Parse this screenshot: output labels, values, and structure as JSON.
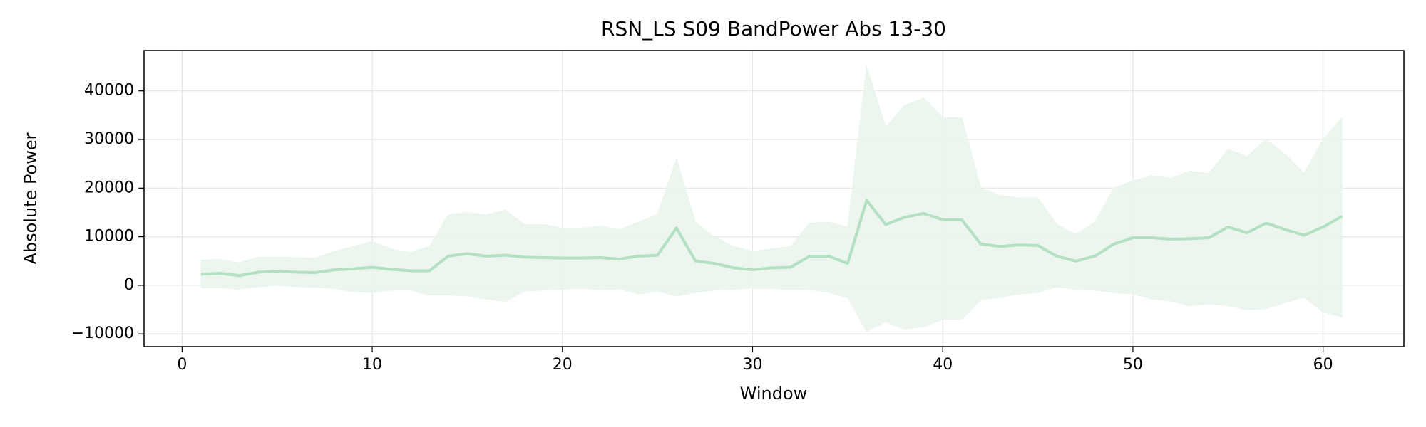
{
  "chart_data": {
    "type": "line",
    "title": "RSN_LS S09 BandPower Abs 13-30",
    "xlabel": "Window",
    "ylabel": "Absolute Power",
    "x": [
      1,
      2,
      3,
      4,
      5,
      6,
      7,
      8,
      9,
      10,
      11,
      12,
      13,
      14,
      15,
      16,
      17,
      18,
      19,
      20,
      21,
      22,
      23,
      24,
      25,
      26,
      27,
      28,
      29,
      30,
      31,
      32,
      33,
      34,
      35,
      36,
      37,
      38,
      39,
      40,
      41,
      42,
      43,
      44,
      45,
      46,
      47,
      48,
      49,
      50,
      51,
      52,
      53,
      54,
      55,
      56,
      57,
      58,
      59,
      60,
      61
    ],
    "series": [
      {
        "color": "#b3dfc3",
        "band_color": "#e9f5ec",
        "values": [
          2300,
          2500,
          2000,
          2700,
          2900,
          2700,
          2600,
          3200,
          3400,
          3700,
          3300,
          3000,
          3000,
          6000,
          6500,
          6000,
          6200,
          5800,
          5700,
          5600,
          5600,
          5700,
          5400,
          6000,
          6200,
          11800,
          5000,
          4500,
          3600,
          3200,
          3600,
          3700,
          6000,
          6000,
          4500,
          17500,
          12500,
          14000,
          14800,
          13500,
          13500,
          8500,
          8000,
          8300,
          8200,
          6000,
          5000,
          6000,
          8500,
          9800,
          9800,
          9500,
          9600,
          9800,
          12000,
          10800,
          12800,
          11500,
          10300,
          12000,
          14200
        ],
        "upper": [
          5200,
          5300,
          4600,
          5800,
          5800,
          5700,
          5600,
          7000,
          8000,
          9000,
          7500,
          6800,
          8000,
          14500,
          15000,
          14500,
          15500,
          12500,
          12500,
          11800,
          11800,
          12200,
          11500,
          13000,
          14500,
          26000,
          13000,
          10000,
          8000,
          7000,
          7500,
          8000,
          12800,
          13000,
          12000,
          45000,
          32500,
          37000,
          38500,
          34500,
          34500,
          20000,
          18500,
          18000,
          18000,
          12500,
          10500,
          13000,
          20000,
          21500,
          22500,
          22000,
          23500,
          23000,
          28000,
          26500,
          30000,
          27000,
          23000,
          30000,
          34500
        ],
        "lower": [
          -500,
          -500,
          -800,
          -300,
          0,
          -300,
          -400,
          -700,
          -1300,
          -1500,
          -1000,
          -1000,
          -2000,
          -2000,
          -2200,
          -2800,
          -3300,
          -1200,
          -1000,
          -800,
          -600,
          -900,
          -700,
          -1800,
          -1200,
          -2200,
          -1500,
          -1000,
          -800,
          -600,
          -700,
          -800,
          -900,
          -1500,
          -2500,
          -9500,
          -7500,
          -9000,
          -8500,
          -7000,
          -7000,
          -3000,
          -2500,
          -1800,
          -1500,
          -300,
          -900,
          -1000,
          -1500,
          -1800,
          -2800,
          -3200,
          -4200,
          -3800,
          -4200,
          -5000,
          -4800,
          -3500,
          -2500,
          -5500,
          -6500
        ]
      }
    ],
    "xlim": [
      -2,
      64.25
    ],
    "ylim": [
      -12600,
      48300
    ],
    "xticks": [
      0,
      10,
      20,
      30,
      40,
      50,
      60
    ],
    "yticks": [
      {
        "value": -10000,
        "label": "−10000"
      },
      0,
      10000,
      20000,
      30000,
      40000
    ],
    "grid": true
  }
}
